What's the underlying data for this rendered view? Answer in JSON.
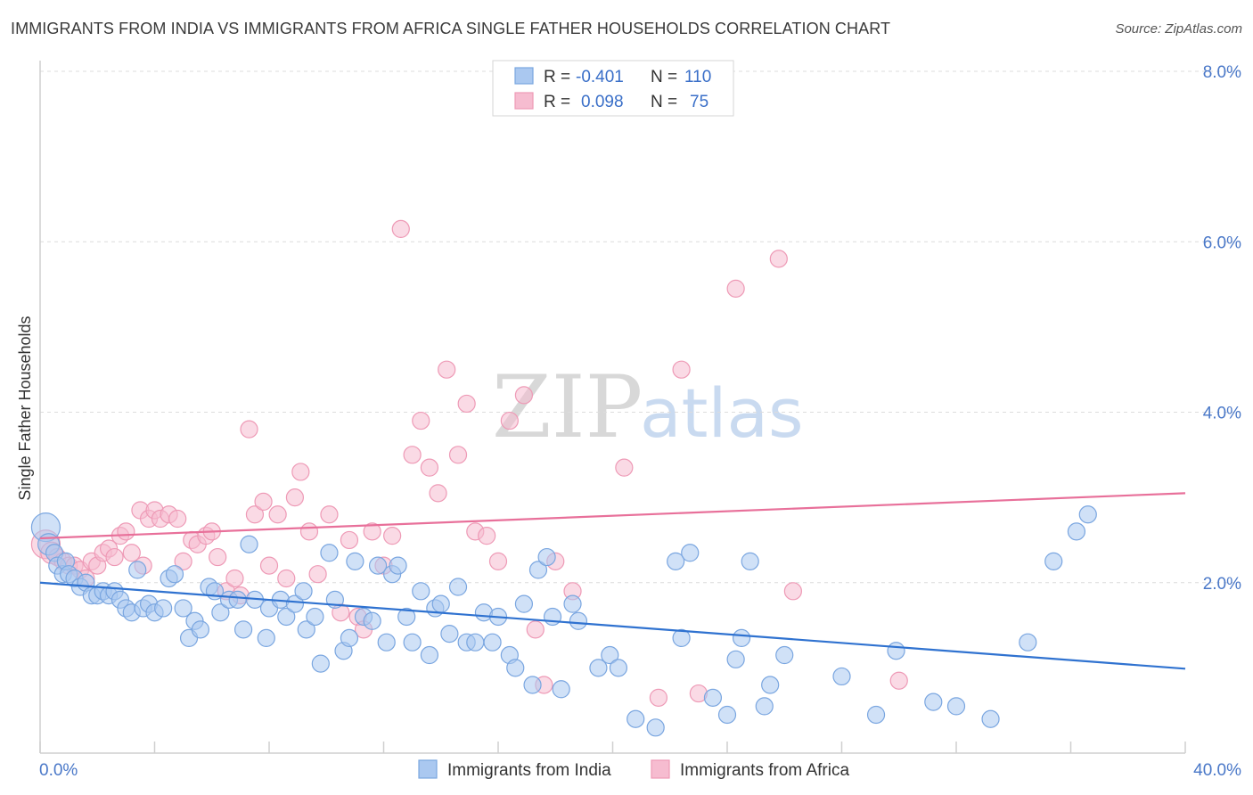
{
  "header": {
    "title": "IMMIGRANTS FROM INDIA VS IMMIGRANTS FROM AFRICA SINGLE FATHER HOUSEHOLDS CORRELATION CHART",
    "source": "Source: ZipAtlas.com"
  },
  "watermark": {
    "zip": "ZIP",
    "atlas": "atlas"
  },
  "legend": {
    "india": {
      "r_label": "R =",
      "r_value": "-0.401",
      "n_label": "N =",
      "n_value": "110"
    },
    "africa": {
      "r_label": "R =",
      "r_value": "0.098",
      "n_label": "N =",
      "n_value": "75"
    }
  },
  "colors": {
    "india_fill": "#aac8f0",
    "india_stroke": "#7aa6e0",
    "india_line": "#2f72d0",
    "africa_fill": "#f6bcd0",
    "africa_stroke": "#ee9ab6",
    "africa_line": "#e8709a",
    "grid": "#dcdcdc",
    "tick_text": "#4a78c8"
  },
  "chart_data": {
    "type": "scatter",
    "title": "IMMIGRANTS FROM INDIA VS IMMIGRANTS FROM AFRICA SINGLE FATHER HOUSEHOLDS CORRELATION CHART",
    "xlabel": "",
    "ylabel": "Single Father Households",
    "xlim": [
      0,
      40
    ],
    "ylim": [
      0,
      8
    ],
    "x_tick_labels": [
      "0.0%",
      "40.0%"
    ],
    "y_tick_labels": [
      "2.0%",
      "4.0%",
      "6.0%",
      "8.0%"
    ],
    "y_ticks": [
      2,
      4,
      6,
      8
    ],
    "grid": true,
    "legend_position": "top-center",
    "series": [
      {
        "name": "Immigrants from India",
        "r": -0.401,
        "n": 110,
        "trend": {
          "x": [
            0,
            40
          ],
          "y": [
            2.0,
            0.99
          ]
        },
        "points": [
          [
            0.2,
            2.65
          ],
          [
            0.3,
            2.45
          ],
          [
            0.5,
            2.35
          ],
          [
            0.6,
            2.2
          ],
          [
            0.8,
            2.1
          ],
          [
            0.9,
            2.25
          ],
          [
            1.0,
            2.1
          ],
          [
            1.2,
            2.05
          ],
          [
            1.4,
            1.95
          ],
          [
            1.6,
            2.0
          ],
          [
            1.8,
            1.85
          ],
          [
            2.0,
            1.85
          ],
          [
            2.2,
            1.9
          ],
          [
            2.4,
            1.85
          ],
          [
            2.6,
            1.9
          ],
          [
            2.8,
            1.8
          ],
          [
            3.0,
            1.7
          ],
          [
            3.2,
            1.65
          ],
          [
            3.4,
            2.15
          ],
          [
            3.6,
            1.7
          ],
          [
            3.8,
            1.75
          ],
          [
            4.0,
            1.65
          ],
          [
            4.3,
            1.7
          ],
          [
            4.5,
            2.05
          ],
          [
            4.7,
            2.1
          ],
          [
            5.0,
            1.7
          ],
          [
            5.2,
            1.35
          ],
          [
            5.4,
            1.55
          ],
          [
            5.6,
            1.45
          ],
          [
            5.9,
            1.95
          ],
          [
            6.1,
            1.9
          ],
          [
            6.3,
            1.65
          ],
          [
            6.6,
            1.8
          ],
          [
            6.9,
            1.8
          ],
          [
            7.1,
            1.45
          ],
          [
            7.3,
            2.45
          ],
          [
            7.5,
            1.8
          ],
          [
            7.9,
            1.35
          ],
          [
            8.0,
            1.7
          ],
          [
            8.4,
            1.8
          ],
          [
            8.6,
            1.6
          ],
          [
            8.9,
            1.75
          ],
          [
            9.2,
            1.9
          ],
          [
            9.3,
            1.45
          ],
          [
            9.6,
            1.6
          ],
          [
            9.8,
            1.05
          ],
          [
            10.1,
            2.35
          ],
          [
            10.3,
            1.8
          ],
          [
            10.6,
            1.2
          ],
          [
            10.8,
            1.35
          ],
          [
            11.0,
            2.25
          ],
          [
            11.3,
            1.6
          ],
          [
            11.6,
            1.55
          ],
          [
            11.8,
            2.2
          ],
          [
            12.1,
            1.3
          ],
          [
            12.3,
            2.1
          ],
          [
            12.5,
            2.2
          ],
          [
            12.8,
            1.6
          ],
          [
            13.0,
            1.3
          ],
          [
            13.3,
            1.9
          ],
          [
            13.6,
            1.15
          ],
          [
            13.8,
            1.7
          ],
          [
            14.0,
            1.75
          ],
          [
            14.3,
            1.4
          ],
          [
            14.6,
            1.95
          ],
          [
            14.9,
            1.3
          ],
          [
            15.2,
            1.3
          ],
          [
            15.5,
            1.65
          ],
          [
            15.8,
            1.3
          ],
          [
            16.0,
            1.6
          ],
          [
            16.4,
            1.15
          ],
          [
            16.6,
            1.0
          ],
          [
            16.9,
            1.75
          ],
          [
            17.2,
            0.8
          ],
          [
            17.4,
            2.15
          ],
          [
            17.7,
            2.3
          ],
          [
            17.9,
            1.6
          ],
          [
            18.2,
            0.75
          ],
          [
            18.6,
            1.75
          ],
          [
            18.8,
            1.55
          ],
          [
            19.5,
            1.0
          ],
          [
            19.9,
            1.15
          ],
          [
            20.2,
            1.0
          ],
          [
            20.8,
            0.4
          ],
          [
            21.5,
            0.3
          ],
          [
            22.2,
            2.25
          ],
          [
            22.4,
            1.35
          ],
          [
            22.7,
            2.35
          ],
          [
            23.5,
            0.65
          ],
          [
            24.0,
            0.45
          ],
          [
            24.3,
            1.1
          ],
          [
            24.5,
            1.35
          ],
          [
            24.8,
            2.25
          ],
          [
            25.3,
            0.55
          ],
          [
            25.5,
            0.8
          ],
          [
            26.0,
            1.15
          ],
          [
            28.0,
            0.9
          ],
          [
            29.2,
            0.45
          ],
          [
            29.9,
            1.2
          ],
          [
            31.2,
            0.6
          ],
          [
            32.0,
            0.55
          ],
          [
            33.2,
            0.4
          ],
          [
            34.5,
            1.3
          ],
          [
            35.4,
            2.25
          ],
          [
            36.2,
            2.6
          ],
          [
            36.6,
            2.8
          ]
        ]
      },
      {
        "name": "Immigrants from Africa",
        "r": 0.098,
        "n": 75,
        "trend": {
          "x": [
            0,
            40
          ],
          "y": [
            2.52,
            3.05
          ]
        },
        "points": [
          [
            0.2,
            2.45
          ],
          [
            0.4,
            2.35
          ],
          [
            0.6,
            2.3
          ],
          [
            0.8,
            2.25
          ],
          [
            1.0,
            2.2
          ],
          [
            1.2,
            2.2
          ],
          [
            1.4,
            2.15
          ],
          [
            1.6,
            2.05
          ],
          [
            1.8,
            2.25
          ],
          [
            2.0,
            2.2
          ],
          [
            2.2,
            2.35
          ],
          [
            2.4,
            2.4
          ],
          [
            2.6,
            2.3
          ],
          [
            2.8,
            2.55
          ],
          [
            3.0,
            2.6
          ],
          [
            3.2,
            2.35
          ],
          [
            3.5,
            2.85
          ],
          [
            3.6,
            2.2
          ],
          [
            3.8,
            2.75
          ],
          [
            4.0,
            2.85
          ],
          [
            4.2,
            2.75
          ],
          [
            4.5,
            2.8
          ],
          [
            4.8,
            2.75
          ],
          [
            5.0,
            2.25
          ],
          [
            5.3,
            2.5
          ],
          [
            5.5,
            2.45
          ],
          [
            5.8,
            2.55
          ],
          [
            6.0,
            2.6
          ],
          [
            6.2,
            2.3
          ],
          [
            6.5,
            1.9
          ],
          [
            6.8,
            2.05
          ],
          [
            7.0,
            1.85
          ],
          [
            7.3,
            3.8
          ],
          [
            7.5,
            2.8
          ],
          [
            7.8,
            2.95
          ],
          [
            8.0,
            2.2
          ],
          [
            8.3,
            2.8
          ],
          [
            8.6,
            2.05
          ],
          [
            8.9,
            3.0
          ],
          [
            9.1,
            3.3
          ],
          [
            9.4,
            2.6
          ],
          [
            9.7,
            2.1
          ],
          [
            10.1,
            2.8
          ],
          [
            10.5,
            1.65
          ],
          [
            10.8,
            2.5
          ],
          [
            11.1,
            1.6
          ],
          [
            11.3,
            1.45
          ],
          [
            11.6,
            2.6
          ],
          [
            12.0,
            2.2
          ],
          [
            12.3,
            2.55
          ],
          [
            12.6,
            6.15
          ],
          [
            13.0,
            3.5
          ],
          [
            13.3,
            3.9
          ],
          [
            13.6,
            3.35
          ],
          [
            13.9,
            3.05
          ],
          [
            14.2,
            4.5
          ],
          [
            14.6,
            3.5
          ],
          [
            14.9,
            4.1
          ],
          [
            15.2,
            2.6
          ],
          [
            15.6,
            2.55
          ],
          [
            16.0,
            2.25
          ],
          [
            16.4,
            3.9
          ],
          [
            16.9,
            4.2
          ],
          [
            17.3,
            1.45
          ],
          [
            17.6,
            0.8
          ],
          [
            18.0,
            2.25
          ],
          [
            18.6,
            1.9
          ],
          [
            20.4,
            3.35
          ],
          [
            21.6,
            0.65
          ],
          [
            22.4,
            4.5
          ],
          [
            23.0,
            0.7
          ],
          [
            24.3,
            5.45
          ],
          [
            25.8,
            5.8
          ],
          [
            26.3,
            1.9
          ],
          [
            30.0,
            0.85
          ]
        ]
      }
    ]
  },
  "bottom_legend": {
    "india_label": "Immigrants from India",
    "africa_label": "Immigrants from Africa"
  }
}
